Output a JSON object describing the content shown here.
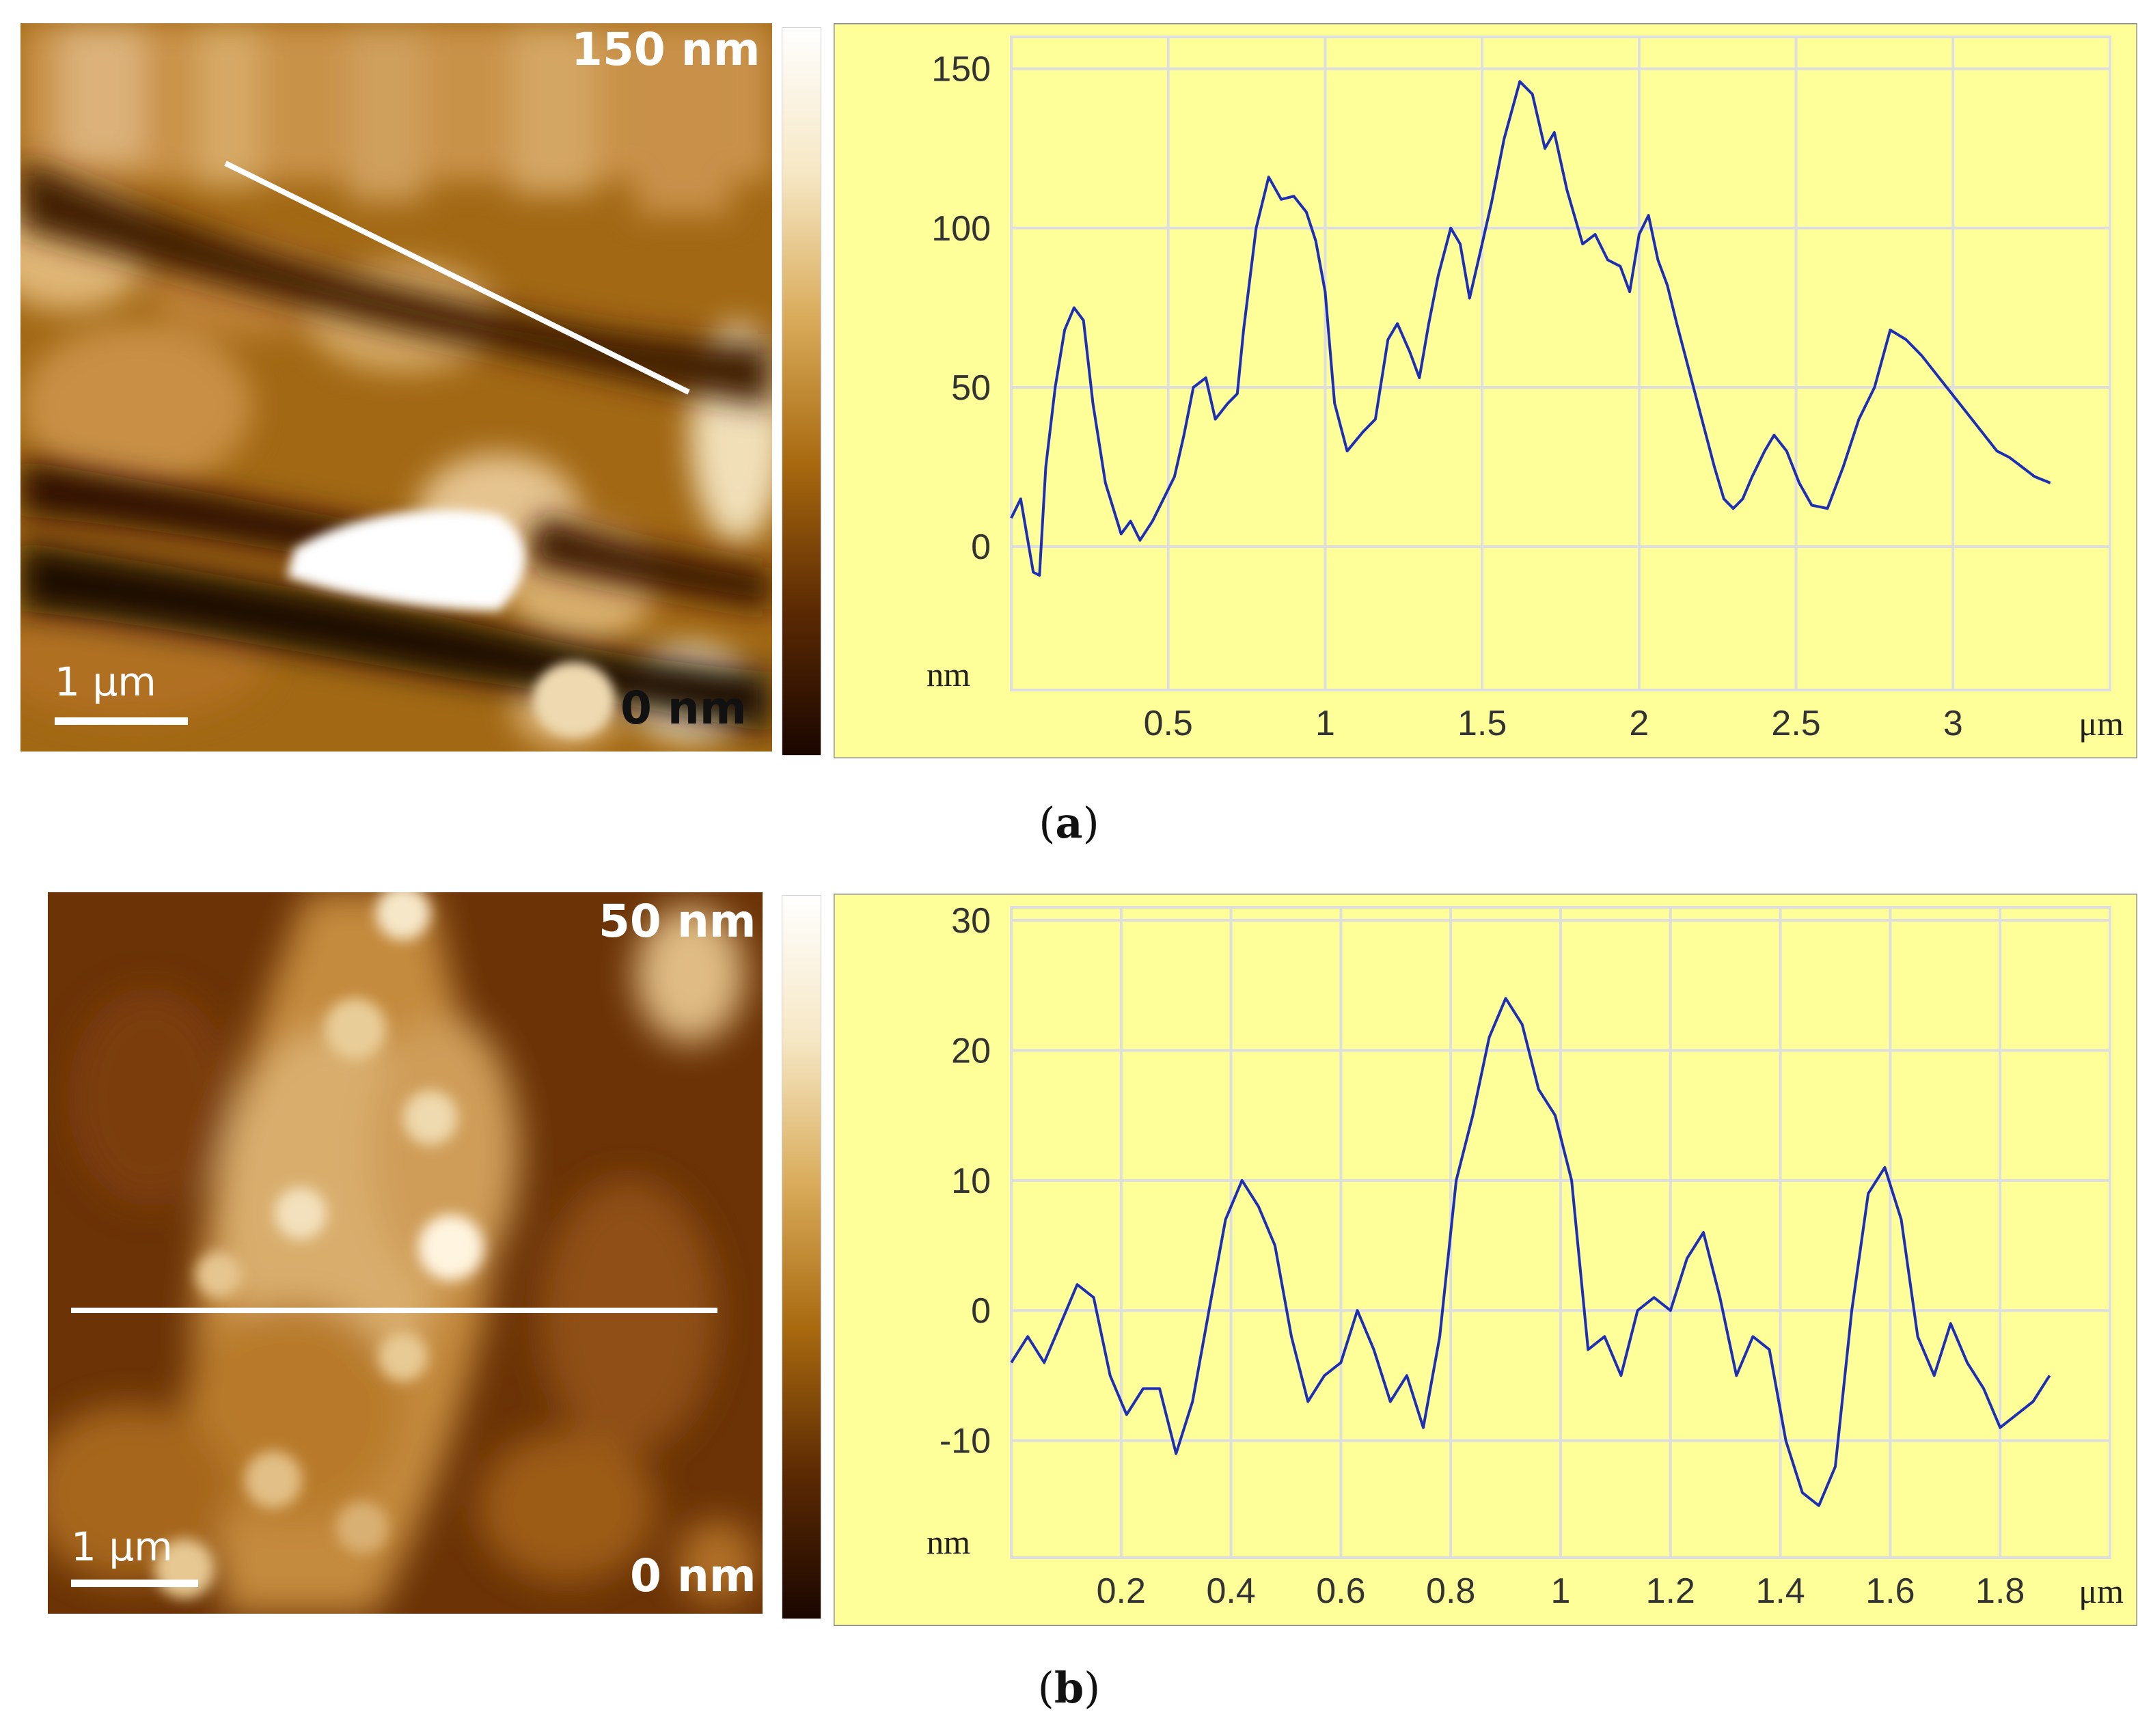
{
  "panels": [
    {
      "id": "a",
      "caption_open": "(",
      "caption_letter": "a",
      "caption_close": ")",
      "image": {
        "colorbar_max_label": "150 nm",
        "colorbar_min_label": "0 nm",
        "scale_bar_label": "1 μm",
        "colormap": [
          "#1a0600",
          "#5c2a03",
          "#a8690f",
          "#d9ab5a",
          "#f6e7c4",
          "#ffffff"
        ]
      },
      "profile": {
        "background": "#ffff99",
        "line_color": "#1f2fb3",
        "grid_color": "#dedede"
      }
    },
    {
      "id": "b",
      "caption_open": "(",
      "caption_letter": "b",
      "caption_close": ")",
      "image": {
        "colorbar_max_label": "50 nm",
        "colorbar_min_label": "0 nm",
        "scale_bar_label": "1 μm",
        "colormap": [
          "#1a0600",
          "#5c2a03",
          "#a8690f",
          "#d9ab5a",
          "#f6e7c4",
          "#ffffff"
        ]
      },
      "profile": {
        "background": "#ffff99",
        "line_color": "#1f2fb3",
        "grid_color": "#dedede"
      }
    }
  ],
  "chart_data": [
    {
      "type": "line",
      "panel": "a",
      "title": "",
      "xlabel": "μm",
      "ylabel": "nm",
      "xlim": [
        0,
        3.5
      ],
      "ylim": [
        -45,
        160
      ],
      "x_ticks": [
        0.5,
        1,
        1.5,
        2,
        2.5,
        3
      ],
      "x_tick_labels": [
        "0.5",
        "1",
        "1.5",
        "2",
        "2.5",
        "3"
      ],
      "y_ticks": [
        0,
        50,
        100,
        150
      ],
      "y_tick_labels": [
        "0",
        "50",
        "100",
        "150"
      ],
      "grid": true,
      "series": [
        {
          "x": [
            0.0,
            0.03,
            0.07,
            0.09,
            0.11,
            0.14,
            0.17,
            0.2,
            0.23,
            0.26,
            0.3,
            0.35,
            0.38,
            0.41,
            0.45,
            0.48,
            0.52,
            0.55,
            0.58,
            0.62,
            0.65,
            0.69,
            0.72,
            0.74,
            0.78,
            0.82,
            0.86,
            0.9,
            0.94,
            0.97,
            1.0,
            1.03,
            1.07,
            1.12,
            1.16,
            1.2,
            1.23,
            1.27,
            1.3,
            1.33,
            1.36,
            1.4,
            1.43,
            1.46,
            1.5,
            1.53,
            1.57,
            1.62,
            1.66,
            1.7,
            1.73,
            1.77,
            1.82,
            1.86,
            1.9,
            1.94,
            1.97,
            2.0,
            2.03,
            2.06,
            2.09,
            2.12,
            2.16,
            2.2,
            2.24,
            2.27,
            2.3,
            2.33,
            2.36,
            2.4,
            2.43,
            2.47,
            2.51,
            2.55,
            2.6,
            2.65,
            2.7,
            2.75,
            2.8,
            2.85,
            2.9,
            2.94,
            2.98,
            3.02,
            3.06,
            3.1,
            3.14,
            3.18,
            3.22,
            3.26,
            3.31
          ],
          "y": [
            9,
            15,
            -8,
            -9,
            25,
            50,
            68,
            75,
            71,
            45,
            20,
            4,
            8,
            2,
            8,
            14,
            22,
            35,
            50,
            53,
            40,
            45,
            48,
            68,
            100,
            116,
            109,
            110,
            105,
            96,
            80,
            45,
            30,
            36,
            40,
            65,
            70,
            61,
            53,
            70,
            85,
            100,
            95,
            78,
            95,
            108,
            128,
            146,
            142,
            125,
            130,
            112,
            95,
            98,
            90,
            88,
            80,
            98,
            104,
            90,
            82,
            70,
            55,
            40,
            25,
            15,
            12,
            15,
            22,
            30,
            35,
            30,
            20,
            13,
            12,
            25,
            40,
            50,
            68,
            65,
            60,
            55,
            50,
            45,
            40,
            35,
            30,
            28,
            25,
            22,
            20
          ]
        }
      ]
    },
    {
      "type": "line",
      "panel": "b",
      "title": "",
      "xlabel": "μm",
      "ylabel": "nm",
      "xlim": [
        0,
        2.0
      ],
      "ylim": [
        -19,
        31
      ],
      "x_ticks": [
        0.2,
        0.4,
        0.6,
        0.8,
        1,
        1.2,
        1.4,
        1.6,
        1.8
      ],
      "x_tick_labels": [
        "0.2",
        "0.4",
        "0.6",
        "0.8",
        "1",
        "1.2",
        "1.4",
        "1.6",
        "1.8"
      ],
      "y_ticks": [
        -10,
        0,
        10,
        20,
        30
      ],
      "y_tick_labels": [
        "-10",
        "0",
        "10",
        "20",
        "30"
      ],
      "grid": true,
      "series": [
        {
          "x": [
            0.0,
            0.03,
            0.06,
            0.09,
            0.12,
            0.15,
            0.18,
            0.21,
            0.24,
            0.27,
            0.3,
            0.33,
            0.36,
            0.39,
            0.42,
            0.45,
            0.48,
            0.51,
            0.54,
            0.57,
            0.6,
            0.63,
            0.66,
            0.69,
            0.72,
            0.75,
            0.78,
            0.81,
            0.84,
            0.87,
            0.9,
            0.93,
            0.96,
            0.99,
            1.02,
            1.05,
            1.08,
            1.11,
            1.14,
            1.17,
            1.2,
            1.23,
            1.26,
            1.29,
            1.32,
            1.35,
            1.38,
            1.41,
            1.44,
            1.47,
            1.5,
            1.53,
            1.56,
            1.59,
            1.62,
            1.65,
            1.68,
            1.71,
            1.74,
            1.77,
            1.8,
            1.83,
            1.86,
            1.89
          ],
          "y": [
            -4,
            -2,
            -4,
            -1,
            2,
            1,
            -5,
            -8,
            -6,
            -6,
            -11,
            -7,
            0,
            7,
            10,
            8,
            5,
            -2,
            -7,
            -5,
            -4,
            0,
            -3,
            -7,
            -5,
            -9,
            -2,
            10,
            15,
            21,
            24,
            22,
            17,
            15,
            10,
            -3,
            -2,
            -5,
            0,
            1,
            0,
            4,
            6,
            1,
            -5,
            -2,
            -3,
            -10,
            -14,
            -15,
            -12,
            0,
            9,
            11,
            7,
            -2,
            -5,
            -1,
            -4,
            -6,
            -9,
            -8,
            -7,
            -5
          ]
        }
      ]
    }
  ]
}
